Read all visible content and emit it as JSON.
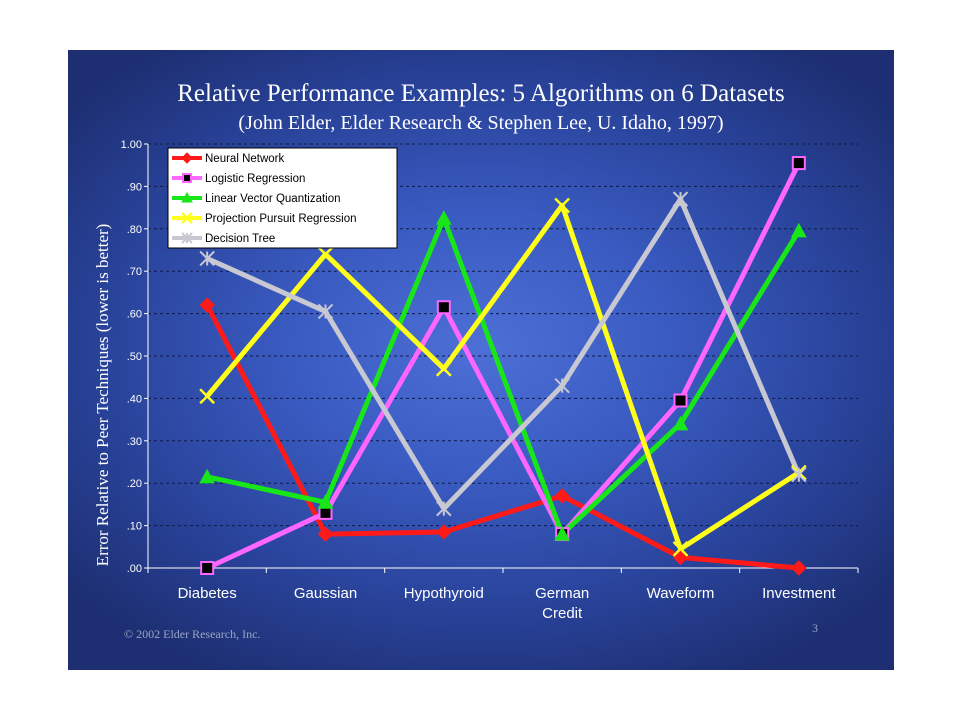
{
  "slide": {
    "title": "Relative Performance Examples:  5 Algorithms on 6 Datasets",
    "subtitle": "(John Elder, Elder Research & Stephen Lee, U. Idaho, 1997)",
    "footer_left": "© 2002 Elder Research, Inc.",
    "page_number": "3"
  },
  "chart_data": {
    "type": "line",
    "ylabel": "Error Relative to Peer Techniques (lower is better)",
    "xlabel": "",
    "ylim": [
      0,
      1
    ],
    "yticks": [
      0,
      0.1,
      0.2,
      0.3,
      0.4,
      0.5,
      0.6,
      0.7,
      0.8,
      0.9,
      1.0
    ],
    "ytick_labels": [
      ".00",
      ".10",
      ".20",
      ".30",
      ".40",
      ".50",
      ".60",
      ".70",
      ".80",
      ".90",
      "1.00"
    ],
    "grid": true,
    "legend_position": "top-left",
    "categories": [
      [
        "Diabetes"
      ],
      [
        "Gaussian"
      ],
      [
        "Hypothyroid"
      ],
      [
        "German",
        "Credit"
      ],
      [
        "Waveform"
      ],
      [
        "Investment"
      ]
    ],
    "series": [
      {
        "name": "Neural Network",
        "color": "#ff1a1a",
        "marker": "diamond",
        "values": [
          0.62,
          0.08,
          0.085,
          0.17,
          0.025,
          0.0
        ]
      },
      {
        "name": "Logistic Regression",
        "color": "#ff66ff",
        "marker": "square",
        "values": [
          0.0,
          0.13,
          0.615,
          0.08,
          0.395,
          0.955
        ]
      },
      {
        "name": "Linear Vector Quantization",
        "color": "#19e619",
        "marker": "triangle",
        "values": [
          0.215,
          0.155,
          0.825,
          0.08,
          0.34,
          0.795
        ]
      },
      {
        "name": "Projection Pursuit Regression",
        "color": "#ffff1a",
        "marker": "x",
        "values": [
          0.405,
          0.74,
          0.47,
          0.855,
          0.045,
          0.225
        ]
      },
      {
        "name": "Decision Tree",
        "color": "#c8c8d2",
        "marker": "asterisk",
        "values": [
          0.73,
          0.605,
          0.14,
          0.43,
          0.87,
          0.22
        ]
      }
    ]
  }
}
